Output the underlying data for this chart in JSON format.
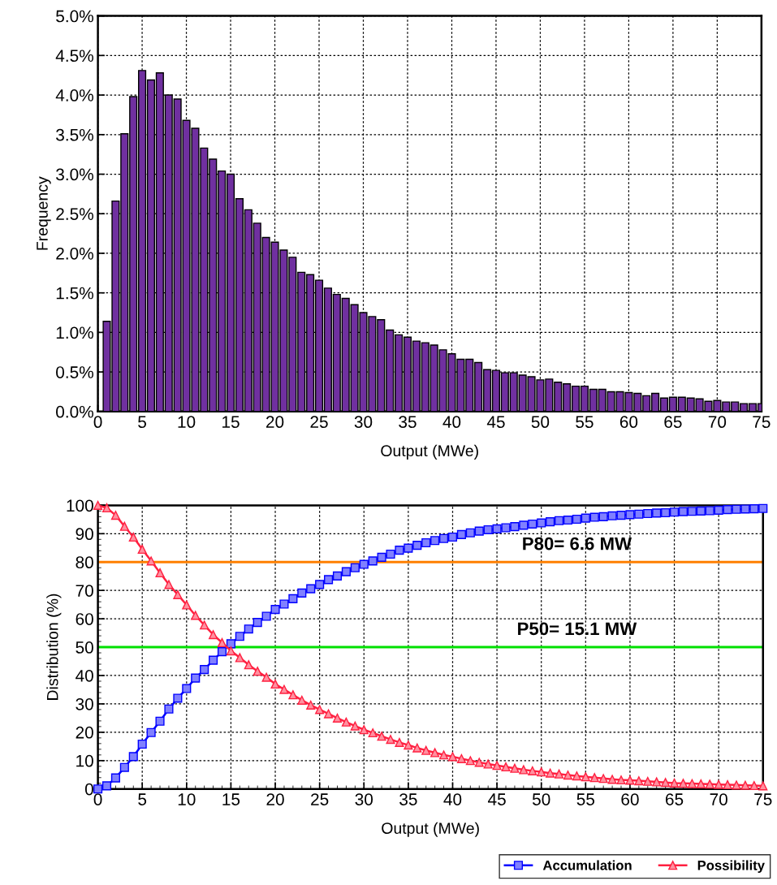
{
  "chart_data": [
    {
      "type": "bar",
      "xlabel": "Output (MWe)",
      "ylabel": "Frequency",
      "color": "#7030a0",
      "grid": true,
      "legend": false,
      "x": [
        1,
        2,
        3,
        4,
        5,
        6,
        7,
        8,
        9,
        10,
        11,
        12,
        13,
        14,
        15,
        16,
        17,
        18,
        19,
        20,
        21,
        22,
        23,
        24,
        25,
        26,
        27,
        28,
        29,
        30,
        31,
        32,
        33,
        34,
        35,
        36,
        37,
        38,
        39,
        40,
        41,
        42,
        43,
        44,
        45,
        46,
        47,
        48,
        49,
        50,
        51,
        52,
        53,
        54,
        55,
        56,
        57,
        58,
        59,
        60,
        61,
        62,
        63,
        64,
        65,
        66,
        67,
        68,
        69,
        70,
        71,
        72,
        73,
        74,
        75
      ],
      "values": [
        1.14,
        2.66,
        3.51,
        3.98,
        4.31,
        4.19,
        4.28,
        4.0,
        3.95,
        3.68,
        3.58,
        3.33,
        3.19,
        3.04,
        3.0,
        2.69,
        2.55,
        2.38,
        2.2,
        2.14,
        2.04,
        1.95,
        1.76,
        1.73,
        1.66,
        1.56,
        1.48,
        1.43,
        1.35,
        1.25,
        1.2,
        1.16,
        1.03,
        0.97,
        0.94,
        0.89,
        0.87,
        0.84,
        0.78,
        0.73,
        0.66,
        0.66,
        0.62,
        0.53,
        0.52,
        0.49,
        0.49,
        0.46,
        0.44,
        0.4,
        0.41,
        0.37,
        0.35,
        0.32,
        0.32,
        0.28,
        0.28,
        0.25,
        0.25,
        0.24,
        0.23,
        0.2,
        0.23,
        0.17,
        0.18,
        0.18,
        0.17,
        0.16,
        0.13,
        0.14,
        0.12,
        0.12,
        0.1,
        0.1,
        0.1
      ],
      "xlim": [
        0,
        75
      ],
      "xticks": [
        0,
        5,
        10,
        15,
        20,
        25,
        30,
        35,
        40,
        45,
        50,
        55,
        60,
        65,
        70,
        75
      ],
      "ylim": [
        0,
        5
      ],
      "yticks": [
        {
          "value": 0,
          "label": "0.0%"
        },
        {
          "value": 0.5,
          "label": "0.5%"
        },
        {
          "value": 1,
          "label": "1.0%"
        },
        {
          "value": 1.5,
          "label": "1.5%"
        },
        {
          "value": 2,
          "label": "2.0%"
        },
        {
          "value": 2.5,
          "label": "2.5%"
        },
        {
          "value": 3,
          "label": "3.0%"
        },
        {
          "value": 3.5,
          "label": "3.5%"
        },
        {
          "value": 4,
          "label": "4.0%"
        },
        {
          "value": 4.5,
          "label": "4.5%"
        },
        {
          "value": 5,
          "label": "5.0%"
        }
      ]
    },
    {
      "type": "line",
      "xlabel": "Output (MWe)",
      "ylabel": "Distribution (%)",
      "grid": true,
      "legend": "bottom right",
      "x": [
        0,
        1,
        2,
        3,
        4,
        5,
        6,
        7,
        8,
        9,
        10,
        11,
        12,
        13,
        14,
        15,
        16,
        17,
        18,
        19,
        20,
        21,
        22,
        23,
        24,
        25,
        26,
        27,
        28,
        29,
        30,
        31,
        32,
        33,
        34,
        35,
        36,
        37,
        38,
        39,
        40,
        41,
        42,
        43,
        44,
        45,
        46,
        47,
        48,
        49,
        50,
        51,
        52,
        53,
        54,
        55,
        56,
        57,
        58,
        59,
        60,
        61,
        62,
        63,
        64,
        65,
        66,
        67,
        68,
        69,
        70,
        71,
        72,
        73,
        74,
        75
      ],
      "series": [
        {
          "name": "Accumulation",
          "color": "#0000ff",
          "marker": "square",
          "values": [
            0,
            1.1,
            3.9,
            7.6,
            11.4,
            15.8,
            19.9,
            23.9,
            28.2,
            32.0,
            35.4,
            39.1,
            42.1,
            45.4,
            48.4,
            51.2,
            53.8,
            56.4,
            58.7,
            60.9,
            63.3,
            65.2,
            67.1,
            69.1,
            70.6,
            72.1,
            73.8,
            75.1,
            76.6,
            78.0,
            79.2,
            80.4,
            81.7,
            82.8,
            84.2,
            84.9,
            85.9,
            86.8,
            87.6,
            88.3,
            88.8,
            89.7,
            90.3,
            90.9,
            91.4,
            91.7,
            92.1,
            92.5,
            93.0,
            93.4,
            93.8,
            94.2,
            94.6,
            94.8,
            95.1,
            95.5,
            95.8,
            96.0,
            96.3,
            96.5,
            96.7,
            96.9,
            97.1,
            97.3,
            97.4,
            97.6,
            97.8,
            97.9,
            98.0,
            98.1,
            98.3,
            98.5,
            98.6,
            98.7,
            98.8,
            98.9
          ]
        },
        {
          "name": "Possibility",
          "color": "#ff2040",
          "marker": "triangle",
          "values": [
            100,
            99.1,
            96.5,
            92.6,
            88.8,
            84.5,
            80.4,
            76.2,
            72.1,
            68.5,
            64.9,
            61.2,
            57.8,
            54.4,
            51.6,
            48.7,
            46.3,
            43.8,
            41.5,
            39.4,
            37.0,
            35.1,
            33.2,
            31.3,
            29.6,
            28.0,
            26.5,
            25.0,
            23.6,
            22.2,
            20.9,
            19.8,
            18.6,
            17.5,
            16.4,
            15.5,
            14.5,
            13.6,
            12.8,
            12.0,
            11.4,
            10.7,
            10.0,
            9.4,
            8.8,
            8.3,
            7.8,
            7.3,
            6.8,
            6.4,
            6.0,
            5.6,
            5.3,
            4.9,
            4.6,
            4.3,
            4.0,
            3.7,
            3.4,
            3.2,
            3.1,
            2.9,
            2.7,
            2.5,
            2.3,
            2.1,
            2.0,
            1.9,
            1.8,
            1.7,
            1.6,
            1.5,
            1.4,
            1.3,
            1.2,
            1.1
          ]
        }
      ],
      "ref_lines": [
        {
          "axis": "y",
          "value": 80,
          "label": "P80= 6.6 MW",
          "color": "#ff7f00"
        },
        {
          "axis": "y",
          "value": 50,
          "label": "P50= 15.1 MW",
          "color": "#00e000"
        }
      ],
      "xlim": [
        0,
        75
      ],
      "xticks": [
        0,
        5,
        10,
        15,
        20,
        25,
        30,
        35,
        40,
        45,
        50,
        55,
        60,
        65,
        70,
        75
      ],
      "ylim": [
        0,
        100
      ],
      "yticks": [
        0,
        10,
        20,
        30,
        40,
        50,
        60,
        70,
        80,
        90,
        100
      ]
    }
  ]
}
